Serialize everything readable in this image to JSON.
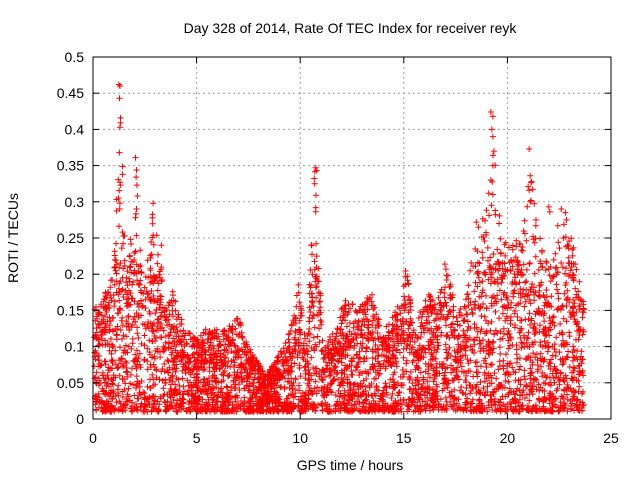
{
  "chart_data": {
    "type": "scatter",
    "title": "Day 328 of 2014, Rate Of TEC Index for receiver reyk",
    "xlabel": "GPS time / hours",
    "ylabel": "ROTI / TECUs",
    "xlim": [
      0,
      25
    ],
    "ylim": [
      0,
      0.5
    ],
    "x_ticks": [
      "0",
      "5",
      "10",
      "15",
      "20",
      "25"
    ],
    "y_ticks": [
      "0",
      "0.05",
      "0.1",
      "0.15",
      "0.2",
      "0.25",
      "0.3",
      "0.35",
      "0.4",
      "0.45",
      "0.5"
    ],
    "grid": true,
    "marker": "+",
    "color": "#ff0000",
    "envelope": [
      [
        0.0,
        0.15
      ],
      [
        0.5,
        0.17
      ],
      [
        1.0,
        0.2
      ],
      [
        1.3,
        0.46
      ],
      [
        1.6,
        0.2
      ],
      [
        2.1,
        0.36
      ],
      [
        2.4,
        0.17
      ],
      [
        2.9,
        0.3
      ],
      [
        3.2,
        0.24
      ],
      [
        3.5,
        0.15
      ],
      [
        3.9,
        0.18
      ],
      [
        4.2,
        0.14
      ],
      [
        5.0,
        0.11
      ],
      [
        5.6,
        0.13
      ],
      [
        6.2,
        0.12
      ],
      [
        7.0,
        0.14
      ],
      [
        7.6,
        0.1
      ],
      [
        8.3,
        0.06
      ],
      [
        9.0,
        0.09
      ],
      [
        9.5,
        0.12
      ],
      [
        9.9,
        0.19
      ],
      [
        10.3,
        0.1
      ],
      [
        10.7,
        0.35
      ],
      [
        11.1,
        0.1
      ],
      [
        11.6,
        0.12
      ],
      [
        12.2,
        0.17
      ],
      [
        12.8,
        0.15
      ],
      [
        13.4,
        0.18
      ],
      [
        14.0,
        0.12
      ],
      [
        14.6,
        0.15
      ],
      [
        15.1,
        0.21
      ],
      [
        15.6,
        0.13
      ],
      [
        16.1,
        0.18
      ],
      [
        16.6,
        0.16
      ],
      [
        17.0,
        0.22
      ],
      [
        17.6,
        0.14
      ],
      [
        18.1,
        0.19
      ],
      [
        18.5,
        0.27
      ],
      [
        19.0,
        0.29
      ],
      [
        19.3,
        0.42
      ],
      [
        19.7,
        0.25
      ],
      [
        20.3,
        0.24
      ],
      [
        20.8,
        0.28
      ],
      [
        21.1,
        0.37
      ],
      [
        21.5,
        0.26
      ],
      [
        22.0,
        0.21
      ],
      [
        22.6,
        0.29
      ],
      [
        23.1,
        0.25
      ],
      [
        23.7,
        0.16
      ]
    ],
    "outliers": [
      [
        1.25,
        0.462
      ],
      [
        1.3,
        0.46
      ],
      [
        1.28,
        0.443
      ],
      [
        1.33,
        0.409
      ],
      [
        1.3,
        0.403
      ],
      [
        1.27,
        0.368
      ],
      [
        1.3,
        0.327
      ],
      [
        1.32,
        0.323
      ],
      [
        1.3,
        0.298
      ],
      [
        1.29,
        0.29
      ],
      [
        2.05,
        0.361
      ],
      [
        2.1,
        0.344
      ],
      [
        2.08,
        0.334
      ],
      [
        2.12,
        0.323
      ],
      [
        2.15,
        0.308
      ],
      [
        2.1,
        0.29
      ],
      [
        2.05,
        0.278
      ],
      [
        2.9,
        0.298
      ],
      [
        3.3,
        0.24
      ],
      [
        10.75,
        0.347
      ],
      [
        10.8,
        0.343
      ],
      [
        10.7,
        0.325
      ],
      [
        10.75,
        0.292
      ],
      [
        10.8,
        0.225
      ],
      [
        10.85,
        0.19
      ],
      [
        10.9,
        0.175
      ],
      [
        11.0,
        0.13
      ],
      [
        19.2,
        0.424
      ],
      [
        19.3,
        0.418
      ],
      [
        19.25,
        0.4
      ],
      [
        19.3,
        0.39
      ],
      [
        19.35,
        0.37
      ],
      [
        19.3,
        0.35
      ],
      [
        19.2,
        0.33
      ],
      [
        19.3,
        0.31
      ],
      [
        18.5,
        0.272
      ],
      [
        18.6,
        0.265
      ],
      [
        21.05,
        0.373
      ],
      [
        21.1,
        0.336
      ],
      [
        21.0,
        0.321
      ],
      [
        21.05,
        0.316
      ],
      [
        21.1,
        0.3
      ],
      [
        22.0,
        0.293
      ],
      [
        22.05,
        0.286
      ],
      [
        22.6,
        0.29
      ],
      [
        22.8,
        0.285
      ],
      [
        22.85,
        0.275
      ],
      [
        22.7,
        0.25
      ],
      [
        22.9,
        0.24
      ],
      [
        23.0,
        0.215
      ],
      [
        23.1,
        0.21
      ]
    ]
  }
}
